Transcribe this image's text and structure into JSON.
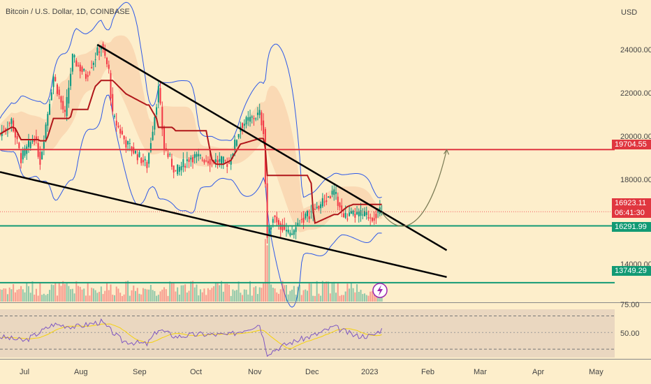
{
  "header": {
    "title": "Bitcoin / U.S. Dollar, 1D, COINBASE"
  },
  "price_scale": {
    "currency": "USD",
    "ticks": [
      "24000.00",
      "22000.00",
      "20000.00",
      "18000.00",
      "14000.00"
    ]
  },
  "rsi_scale": {
    "ticks": [
      "75.00",
      "50.00"
    ]
  },
  "time_axis": {
    "labels": [
      "Jul",
      "Aug",
      "Sep",
      "Oct",
      "Nov",
      "Dec",
      "2023",
      "Feb",
      "Mar",
      "Apr",
      "May"
    ]
  },
  "price_tags": {
    "resistance": "19704.55",
    "current_price": "16923.11",
    "countdown": "06:41:30",
    "support1": "16291.99",
    "support2": "13749.29"
  },
  "colors": {
    "background": "#fdeecb",
    "resistance_line": "#e0363f",
    "support_line": "#129a74",
    "trend_lines": "#000000",
    "bollinger": "#2e59e8",
    "baseline": "#b0161a",
    "candle_up": "#089981",
    "candle_down": "#f23645",
    "rsi": "#7e57c2",
    "rsi_ma": "#f5d20b",
    "projection": "#7b7b55"
  },
  "icons": {
    "alert": "lightning-icon"
  },
  "chart_data": {
    "type": "candlestick",
    "symbol": "Bitcoin / U.S. Dollar",
    "interval": "1D",
    "exchange": "COINBASE",
    "y_unit": "USD",
    "ylim": [
      12900,
      26400
    ],
    "x_range": [
      "2022-06-22",
      "2023-05-10"
    ],
    "price_path": [
      {
        "x": "2022-06-22",
        "y": 20400
      },
      {
        "x": "2022-06-28",
        "y": 21000
      },
      {
        "x": "2022-07-03",
        "y": 19300
      },
      {
        "x": "2022-07-10",
        "y": 20300
      },
      {
        "x": "2022-07-13",
        "y": 19200
      },
      {
        "x": "2022-07-20",
        "y": 23000
      },
      {
        "x": "2022-07-26",
        "y": 21200
      },
      {
        "x": "2022-07-30",
        "y": 23800
      },
      {
        "x": "2022-08-06",
        "y": 23000
      },
      {
        "x": "2022-08-14",
        "y": 24400
      },
      {
        "x": "2022-08-18",
        "y": 23200
      },
      {
        "x": "2022-08-20",
        "y": 21200
      },
      {
        "x": "2022-08-27",
        "y": 20000
      },
      {
        "x": "2022-09-07",
        "y": 19000
      },
      {
        "x": "2022-09-13",
        "y": 22400
      },
      {
        "x": "2022-09-16",
        "y": 19800
      },
      {
        "x": "2022-09-22",
        "y": 18700
      },
      {
        "x": "2022-09-30",
        "y": 19400
      },
      {
        "x": "2022-10-13",
        "y": 19200
      },
      {
        "x": "2022-10-20",
        "y": 19100
      },
      {
        "x": "2022-10-26",
        "y": 20800
      },
      {
        "x": "2022-11-05",
        "y": 21300
      },
      {
        "x": "2022-11-07",
        "y": 20600
      },
      {
        "x": "2022-11-09",
        "y": 15800
      },
      {
        "x": "2022-11-12",
        "y": 16800
      },
      {
        "x": "2022-11-21",
        "y": 15800
      },
      {
        "x": "2022-11-26",
        "y": 16500
      },
      {
        "x": "2022-12-05",
        "y": 17100
      },
      {
        "x": "2022-12-14",
        "y": 17800
      },
      {
        "x": "2022-12-19",
        "y": 16700
      },
      {
        "x": "2022-12-27",
        "y": 16800
      },
      {
        "x": "2023-01-03",
        "y": 16700
      },
      {
        "x": "2023-01-08",
        "y": 16923.11
      }
    ],
    "horizontal_levels": [
      {
        "value": 19704.55,
        "color": "#e0363f"
      },
      {
        "value": 16291.99,
        "color": "#129a74"
      },
      {
        "value": 13749.29,
        "color": "#129a74"
      }
    ],
    "trend_lines": [
      {
        "from": {
          "x": "2022-08-12",
          "y": 24400
        },
        "to": {
          "x": "2023-02-11",
          "y": 15200
        }
      },
      {
        "from": {
          "x": "2022-06-22",
          "y": 18700
        },
        "to": {
          "x": "2023-02-11",
          "y": 14000
        }
      }
    ],
    "projection": [
      {
        "x": "2023-01-08",
        "y": 16900
      },
      {
        "x": "2023-01-18",
        "y": 16300
      },
      {
        "x": "2023-02-01",
        "y": 16700
      },
      {
        "x": "2023-02-11",
        "y": 19700
      }
    ],
    "rsi": {
      "levels": [
        70,
        30
      ],
      "ylim": [
        20,
        78
      ],
      "values": [
        {
          "x": "2022-06-22",
          "y": 45
        },
        {
          "x": "2022-07-05",
          "y": 40
        },
        {
          "x": "2022-07-20",
          "y": 60
        },
        {
          "x": "2022-08-01",
          "y": 57
        },
        {
          "x": "2022-08-14",
          "y": 63
        },
        {
          "x": "2022-08-25",
          "y": 40
        },
        {
          "x": "2022-09-07",
          "y": 36
        },
        {
          "x": "2022-09-13",
          "y": 54
        },
        {
          "x": "2022-09-22",
          "y": 45
        },
        {
          "x": "2022-10-05",
          "y": 48
        },
        {
          "x": "2022-10-20",
          "y": 47
        },
        {
          "x": "2022-11-05",
          "y": 60
        },
        {
          "x": "2022-11-09",
          "y": 25
        },
        {
          "x": "2022-11-20",
          "y": 37
        },
        {
          "x": "2022-12-05",
          "y": 48
        },
        {
          "x": "2022-12-14",
          "y": 57
        },
        {
          "x": "2022-12-25",
          "y": 46
        },
        {
          "x": "2023-01-03",
          "y": 46
        },
        {
          "x": "2023-01-08",
          "y": 54
        }
      ]
    }
  }
}
